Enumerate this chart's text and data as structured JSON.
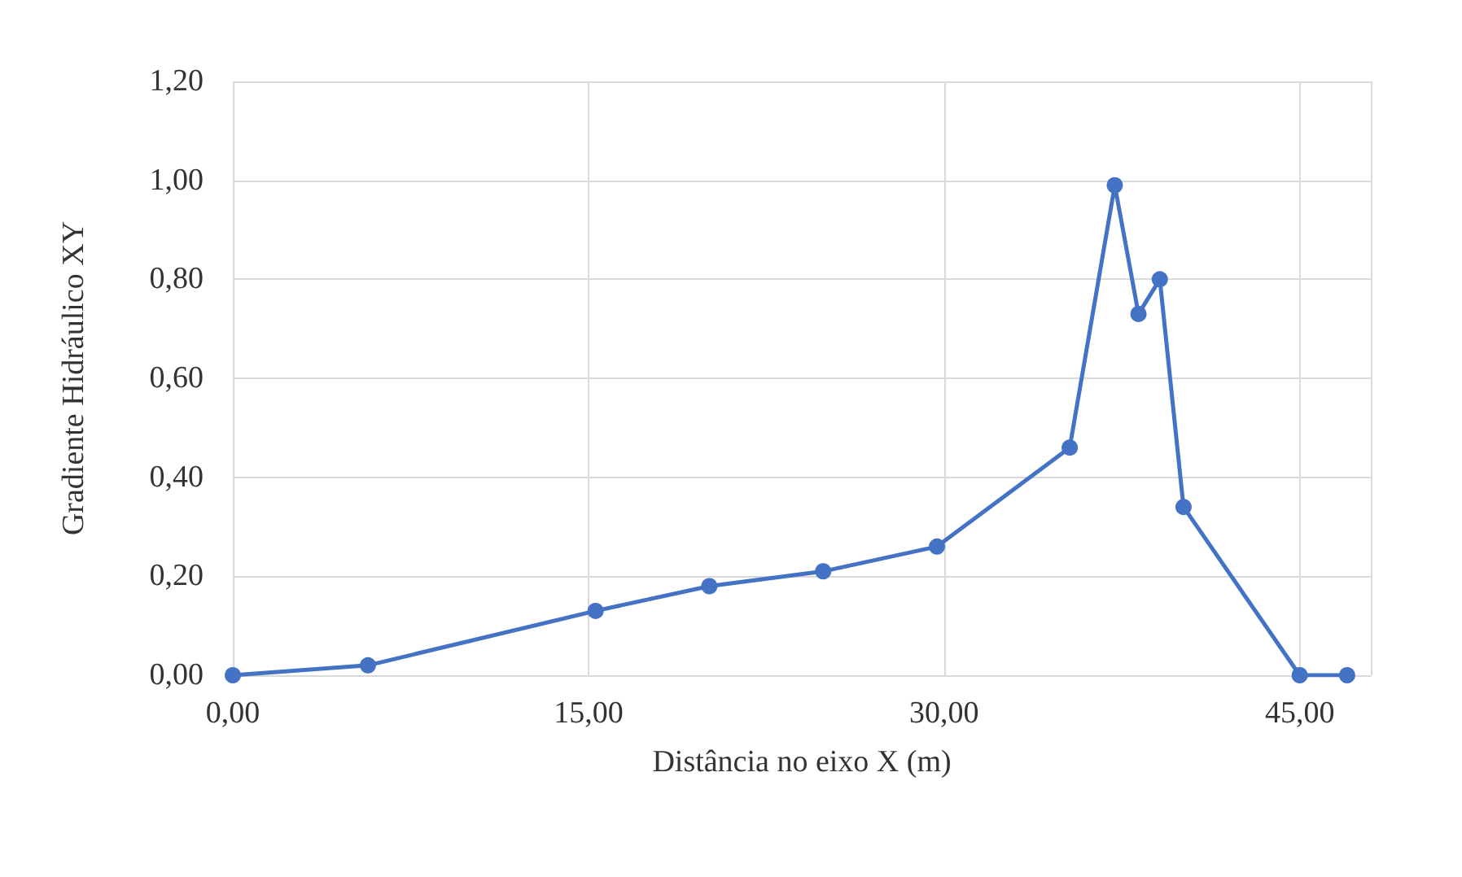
{
  "chart_data": {
    "type": "line",
    "xlabel": "Distância no eixo X (m)",
    "ylabel": "Gradiente Hidráulico XY",
    "x": [
      0,
      5.7,
      15.3,
      20.1,
      24.9,
      29.7,
      35.3,
      37.2,
      38.2,
      39.1,
      40.1,
      45,
      47
    ],
    "series": [
      {
        "color": "#4472c4",
        "values": [
          0,
          0.02,
          0.13,
          0.18,
          0.21,
          0.26,
          0.46,
          0.99,
          0.73,
          0.8,
          0.34,
          0,
          0
        ]
      }
    ],
    "xlim": [
      0,
      48
    ],
    "xticks": [
      {
        "value": 0,
        "label": "0,00"
      },
      {
        "value": 15,
        "label": "15,00"
      },
      {
        "value": 30,
        "label": "30,00"
      },
      {
        "value": 45,
        "label": "45,00"
      }
    ],
    "ylim": [
      0,
      1.2
    ],
    "yticks": [
      {
        "value": 0,
        "label": "0,00"
      },
      {
        "value": 0.2,
        "label": "0,20"
      },
      {
        "value": 0.4,
        "label": "0,40"
      },
      {
        "value": 0.6,
        "label": "0,60"
      },
      {
        "value": 0.8,
        "label": "0,80"
      },
      {
        "value": 1,
        "label": "1,00"
      },
      {
        "value": 1.2,
        "label": "1,20"
      }
    ],
    "grid": true,
    "marker": "circle"
  }
}
